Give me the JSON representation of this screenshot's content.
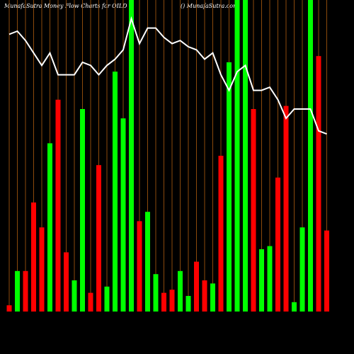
{
  "chart_data": {
    "type": "bar",
    "title": "MunafaSutra  Money Flow  Charts for OILD",
    "subtitle": "() MunafaSutra.com",
    "categories": [
      null,
      null,
      null,
      null,
      null,
      null,
      null,
      null,
      null,
      null,
      null,
      null,
      null,
      null,
      null,
      null,
      null,
      null,
      null,
      null,
      null,
      null,
      null,
      null,
      null,
      null,
      null,
      null,
      null,
      null,
      null,
      null,
      null,
      null,
      null,
      null,
      null,
      null,
      null,
      null
    ],
    "ylim": [
      0,
      100
    ],
    "grid_color": "#8b4a0c",
    "series": [
      {
        "type": "bar",
        "colors": [
          "#ff0000",
          "#00ff00",
          "#ff0000",
          "#ff0000",
          "#ff0000",
          "#00ff00",
          "#ff0000",
          "#ff0000",
          "#00ff00",
          "#00ff00",
          "#ff0000",
          "#ff0000",
          "#00ff00",
          "#00ff00",
          "#00ff00",
          "#00ff00",
          "#ff0000",
          "#00ff00",
          "#00ff00",
          "#ff0000",
          "#ff0000",
          "#00ff00",
          "#00ff00",
          "#ff0000",
          "#ff0000",
          "#00ff00",
          "#ff0000",
          "#00ff00",
          "#00ff00",
          "#00ff00",
          "#ff0000",
          "#00ff00",
          "#00ff00",
          "#ff0000",
          "#ff0000",
          "#00ff00",
          "#00ff00",
          "#00ff00",
          "#ff0000",
          "#ff0000"
        ],
        "values": [
          2,
          13,
          13,
          35,
          27,
          54,
          68,
          19,
          10,
          65,
          6,
          47,
          8,
          77,
          62,
          100,
          29,
          32,
          12,
          6,
          7,
          13,
          5,
          16,
          10,
          9,
          50,
          80,
          100,
          100,
          65,
          20,
          21,
          43,
          66,
          3,
          27,
          100,
          82,
          26
        ]
      },
      {
        "type": "line",
        "color": "#ffffff",
        "values": [
          89,
          90,
          87,
          83,
          79,
          83,
          76,
          76,
          76,
          80,
          79,
          76,
          79,
          81,
          84,
          94,
          86,
          91,
          91,
          88,
          86,
          87,
          85,
          84,
          81,
          83,
          76,
          71,
          77,
          79,
          71,
          71,
          72,
          68,
          62,
          65,
          65,
          65,
          58,
          57
        ]
      }
    ]
  }
}
